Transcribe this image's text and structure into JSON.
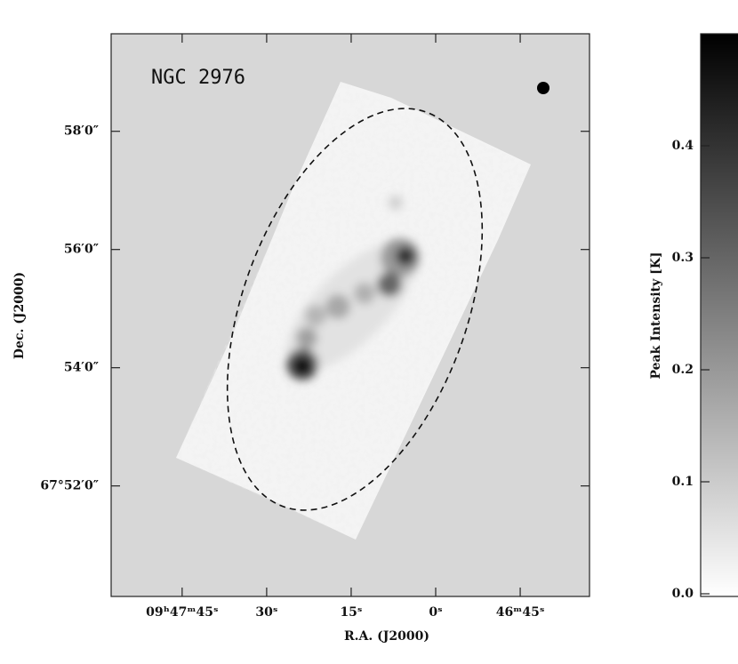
{
  "chart_data": {
    "type": "image",
    "title": "NGC 2976",
    "xlabel": "R.A. (J2000)",
    "ylabel": "Dec. (J2000)",
    "xlim": [
      117.6,
      32.7
    ],
    "xticks": [
      {
        "value": 105,
        "label": "09ʰ47ᵐ45ˢ"
      },
      {
        "value": 90,
        "label": "30ˢ"
      },
      {
        "value": 75,
        "label": "15ˢ"
      },
      {
        "value": 60,
        "label": "0ˢ"
      },
      {
        "value": 45,
        "label": "46ᵐ45ˢ"
      }
    ],
    "ylim": [
      50.13,
      59.65
    ],
    "yticks": [
      {
        "value": 58,
        "label": "58′0″"
      },
      {
        "value": 56,
        "label": "56′0″"
      },
      {
        "value": 54,
        "label": "54′0″"
      },
      {
        "value": 52,
        "label": "67°52′0″"
      }
    ],
    "colorbar": {
      "label": "Peak Intensity [K]",
      "clim": [
        0,
        0.5
      ],
      "ticks": [
        {
          "value": 0,
          "label": "0.0"
        },
        0.1,
        0.2,
        0.3,
        0.4
      ]
    }
  }
}
